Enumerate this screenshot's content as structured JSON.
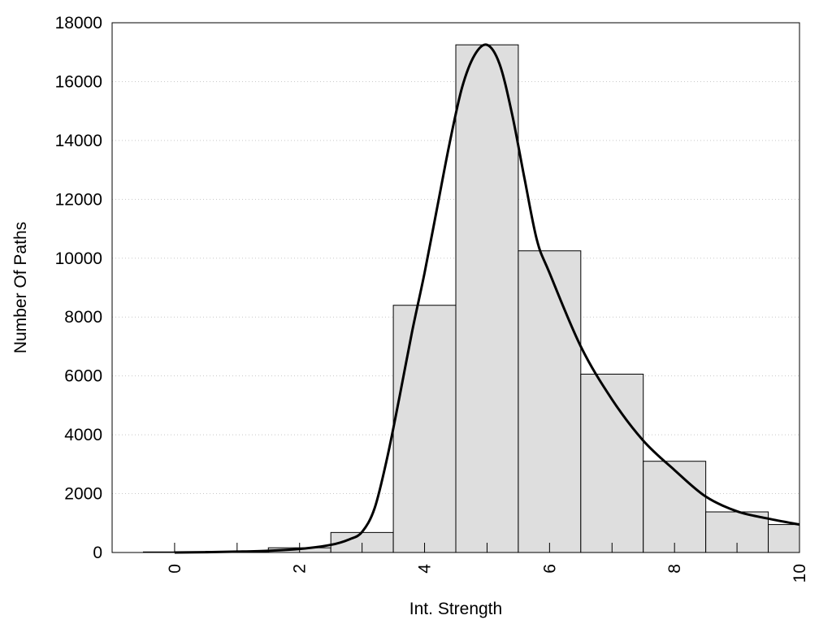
{
  "chart_data": {
    "type": "bar",
    "title": "",
    "xlabel": "Int. Strength",
    "ylabel": "Number Of Paths",
    "xlim": [
      -1,
      10
    ],
    "ylim": [
      0,
      18000
    ],
    "grid": "horizontal-dotted",
    "x_ticks": [
      "0",
      "2",
      "4",
      "6",
      "8",
      "10"
    ],
    "y_ticks": [
      "0",
      "2000",
      "4000",
      "6000",
      "8000",
      "10000",
      "12000",
      "14000",
      "16000",
      "18000"
    ],
    "bins": [
      {
        "center": 0,
        "value": 20
      },
      {
        "center": 1,
        "value": 40
      },
      {
        "center": 2,
        "value": 160
      },
      {
        "center": 3,
        "value": 680
      },
      {
        "center": 4,
        "value": 8400
      },
      {
        "center": 5,
        "value": 17250
      },
      {
        "center": 6,
        "value": 10250
      },
      {
        "center": 7,
        "value": 6060
      },
      {
        "center": 8,
        "value": 3100
      },
      {
        "center": 9,
        "value": 1380
      },
      {
        "center": 10,
        "value": 950
      }
    ],
    "series": [
      {
        "type": "line",
        "x": [
          0,
          0.5,
          1,
          1.5,
          2,
          2.5,
          2.8,
          3,
          3.2,
          3.4,
          3.6,
          3.8,
          4,
          4.2,
          4.4,
          4.6,
          4.8,
          5,
          5.2,
          5.4,
          5.6,
          5.8,
          6,
          6.5,
          7,
          7.5,
          8,
          8.5,
          9,
          9.5,
          10
        ],
        "y": [
          0,
          10,
          30,
          60,
          120,
          260,
          450,
          700,
          1500,
          3200,
          5300,
          7500,
          9500,
          11700,
          13900,
          15800,
          16900,
          17250,
          16600,
          14900,
          12700,
          10600,
          9500,
          7000,
          5200,
          3800,
          2800,
          1900,
          1400,
          1150,
          950
        ]
      }
    ],
    "colors": {
      "bar_fill": "#dedede",
      "bar_stroke": "#000000",
      "line": "#000000",
      "grid": "#c8c8c8"
    }
  }
}
